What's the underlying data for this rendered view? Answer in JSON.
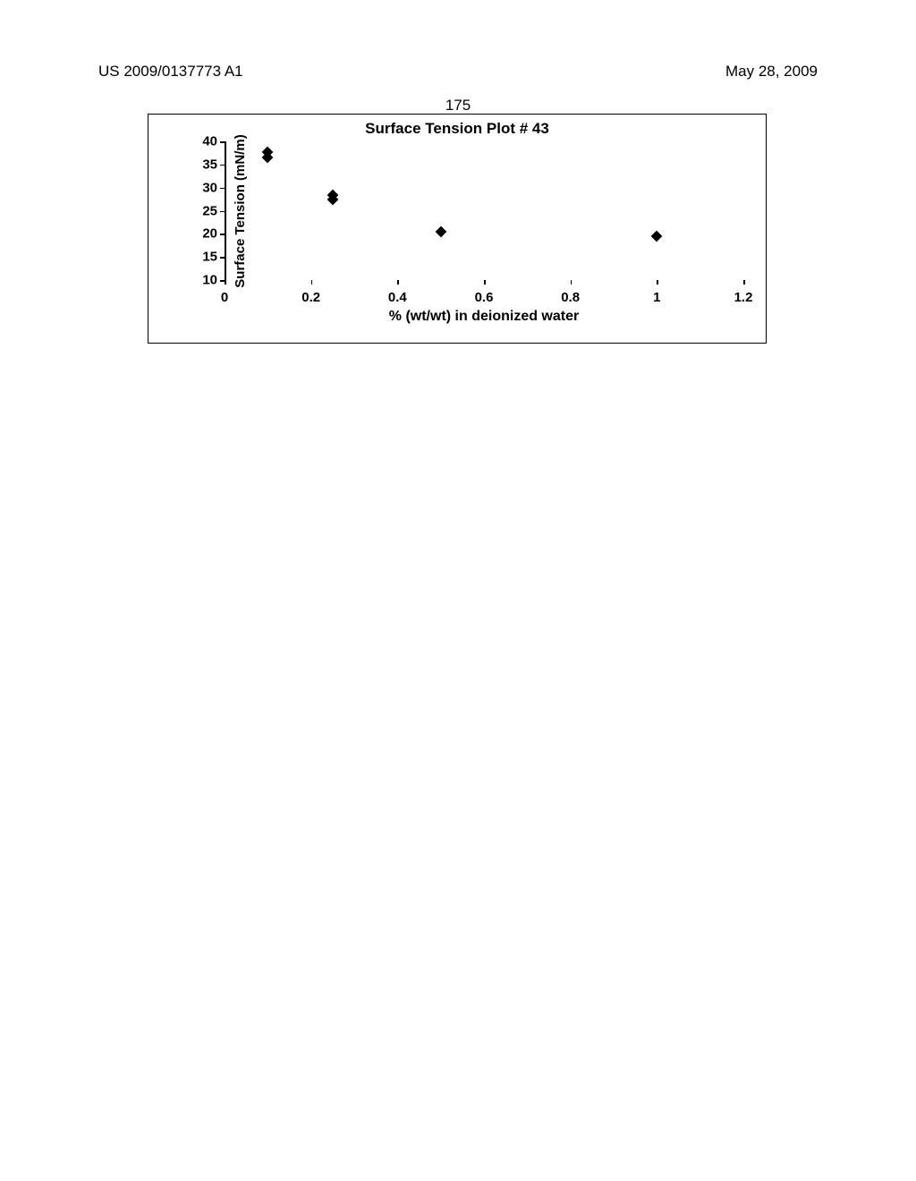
{
  "header": {
    "left": "US 2009/0137773 A1",
    "right": "May 28, 2009",
    "page_number": "175"
  },
  "chart": {
    "type": "scatter",
    "title": "Surface Tension Plot #  43",
    "xlabel": "% (wt/wt) in deionized water",
    "ylabel": "Surface Tension (mN/m)",
    "xlim": [
      0,
      1.2
    ],
    "ylim": [
      10,
      40
    ],
    "xtick_step": 0.2,
    "ytick_step": 5,
    "xticks": [
      0,
      0.2,
      0.4,
      0.6,
      0.8,
      1,
      1.2
    ],
    "yticks": [
      10,
      15,
      20,
      25,
      30,
      35,
      40
    ],
    "xtick_labels": [
      "0",
      "0.2",
      "0.4",
      "0.6",
      "0.8",
      "1",
      "1.2"
    ],
    "ytick_labels": [
      "10",
      "15",
      "20",
      "25",
      "30",
      "35",
      "40"
    ],
    "title_fontsize": 17,
    "label_fontsize": 15,
    "tick_fontsize": 15,
    "marker_style": "diamond",
    "marker_color": "#000000",
    "marker_size": 9,
    "background_color": "#ffffff",
    "axis_color": "#000000",
    "data": [
      {
        "x": 0.1,
        "y": 37.6
      },
      {
        "x": 0.1,
        "y": 36.6
      },
      {
        "x": 0.25,
        "y": 28.4
      },
      {
        "x": 0.25,
        "y": 27.4
      },
      {
        "x": 0.5,
        "y": 20.5
      },
      {
        "x": 1.0,
        "y": 19.5
      }
    ]
  }
}
